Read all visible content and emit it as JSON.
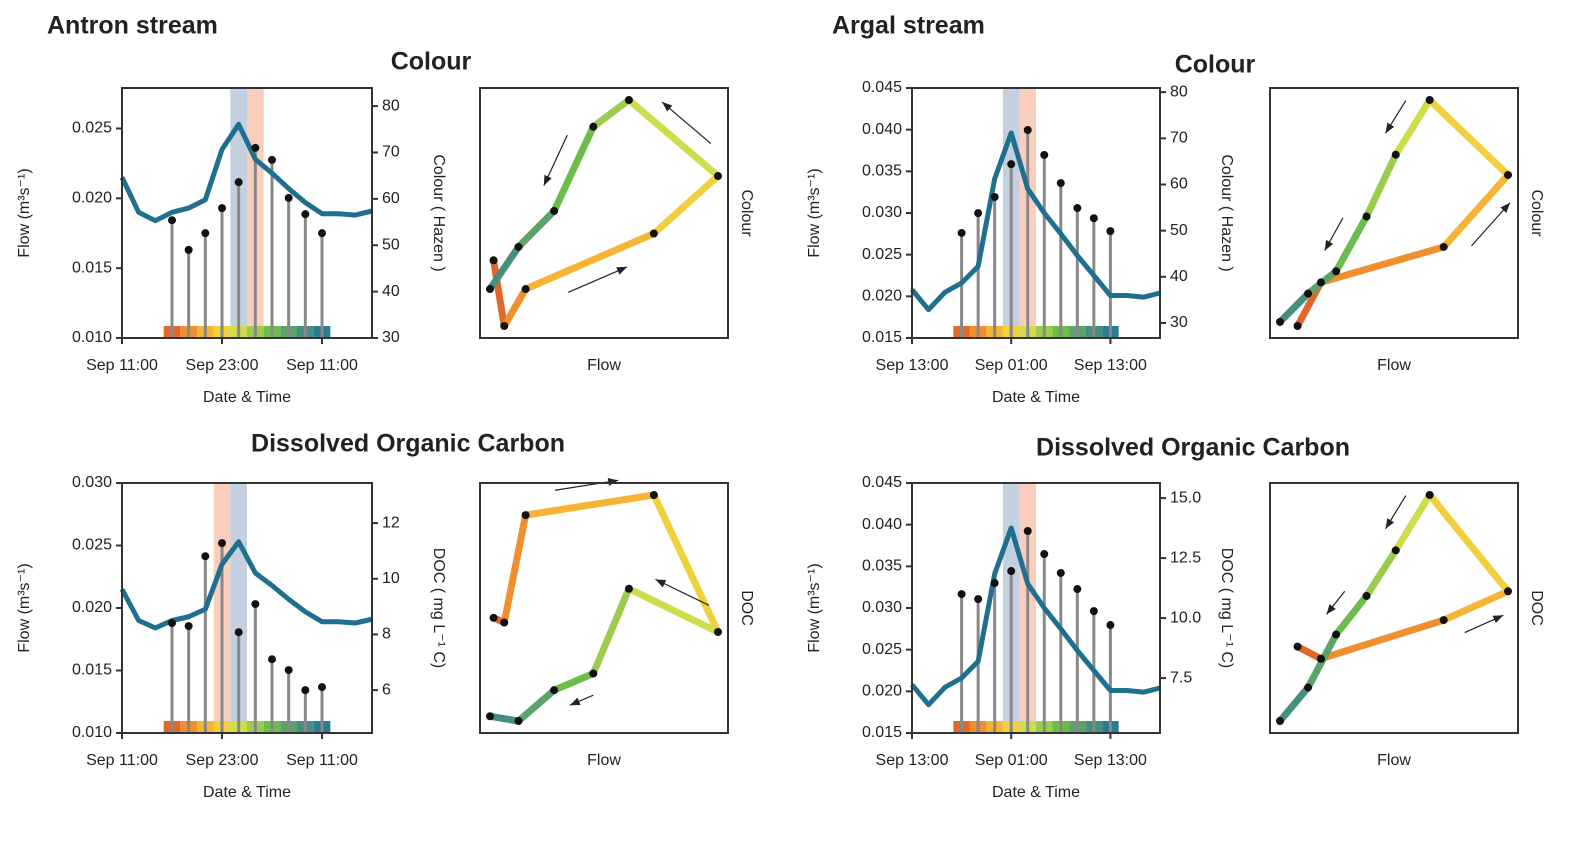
{
  "headers": [
    "Antron stream",
    "Argal stream"
  ],
  "chart_data": [
    {
      "type": "stem",
      "title": "Colour",
      "x_label": "Date & Time",
      "y_label": "Flow (m³s⁻¹)",
      "y2_label": "Colour ( Hazen )",
      "xlim": [
        0,
        30
      ],
      "xticks": [
        {
          "value": 0,
          "label": "Sep 11:00"
        },
        {
          "value": 12,
          "label": "Sep 23:00"
        },
        {
          "value": 24,
          "label": "Sep 11:00"
        }
      ],
      "ylim": [
        0.01,
        0.0279
      ],
      "yticks": [
        {
          "value": 0.01,
          "label": "0.010"
        },
        0.015,
        {
          "value": 0.02,
          "label": "0.020"
        },
        0.025
      ],
      "y2lim": [
        30,
        83.9
      ],
      "y2ticks": [
        30,
        40,
        50,
        60,
        70,
        80
      ],
      "flow_color": "#1f6f8f",
      "flow_x": [
        0,
        2,
        4,
        6,
        8,
        10,
        12,
        14,
        16,
        18,
        20,
        22,
        24,
        26,
        28,
        30
      ],
      "flow_values": [
        0.0215,
        0.019,
        0.0184,
        0.019,
        0.0193,
        0.0199,
        0.0235,
        0.0253,
        0.0228,
        0.0218,
        0.0207,
        0.0197,
        0.0189,
        0.0189,
        0.0188,
        0.0191
      ],
      "sample_x": [
        6,
        8,
        10,
        12,
        14,
        16,
        18,
        20,
        22,
        24
      ],
      "sample_values": [
        55.4,
        49.0,
        52.6,
        58.0,
        63.6,
        71.0,
        68.4,
        60.2,
        56.7,
        52.6
      ],
      "sample_colors": [
        "#e0692a",
        "#f08f2e",
        "#f5b434",
        "#f2cf3c",
        "#cfdc4c",
        "#9ccc4e",
        "#6cbc4c",
        "#5ba36a",
        "#468e80",
        "#2a7d90"
      ],
      "highlights": [
        {
          "x": [
            13,
            15
          ],
          "color": "#b9c8db"
        },
        {
          "x": [
            15,
            17
          ],
          "color": "#f8c6b2"
        }
      ],
      "hysteresis": {
        "x_label": "Flow",
        "y_label": "Colour"
      }
    },
    {
      "type": "stem",
      "title": "Dissolved Organic Carbon",
      "x_label": "Date & Time",
      "y_label": "Flow (m³s⁻¹)",
      "y2_label": "DOC ( mg L⁻¹ C)",
      "xlim": [
        0,
        30
      ],
      "xticks": [
        {
          "value": 0,
          "label": "Sep 11:00"
        },
        {
          "value": 12,
          "label": "Sep 23:00"
        },
        {
          "value": 24,
          "label": "Sep 11:00"
        }
      ],
      "ylim": [
        0.01,
        0.03
      ],
      "yticks": [
        {
          "value": 0.01,
          "label": "0.010"
        },
        0.015,
        {
          "value": 0.02,
          "label": "0.020"
        },
        0.025,
        {
          "value": 0.03,
          "label": "0.030"
        }
      ],
      "y2lim": [
        4.46,
        13.44
      ],
      "y2ticks": [
        6,
        8,
        10,
        12
      ],
      "flow_color": "#1f6f8f",
      "flow_x": [
        0,
        2,
        4,
        6,
        8,
        10,
        12,
        14,
        16,
        18,
        20,
        22,
        24,
        26,
        28,
        30
      ],
      "flow_values": [
        0.0215,
        0.019,
        0.0184,
        0.019,
        0.0193,
        0.0199,
        0.0235,
        0.0253,
        0.0228,
        0.0218,
        0.0207,
        0.0197,
        0.0189,
        0.0189,
        0.0188,
        0.0191
      ],
      "sample_x": [
        6,
        8,
        10,
        12,
        14,
        16,
        18,
        20,
        22,
        24
      ],
      "sample_values": [
        8.41,
        8.3,
        10.81,
        11.28,
        8.08,
        9.09,
        7.11,
        6.72,
        6.0,
        6.11
      ],
      "sample_colors": [
        "#e0692a",
        "#f08f2e",
        "#f5b434",
        "#f2cf3c",
        "#cfdc4c",
        "#9ccc4e",
        "#6cbc4c",
        "#5ba36a",
        "#468e80",
        "#2a7d90"
      ],
      "highlights": [
        {
          "x": [
            11,
            13
          ],
          "color": "#f8c6b2"
        },
        {
          "x": [
            13,
            15
          ],
          "color": "#b9c8db"
        }
      ],
      "hysteresis": {
        "x_label": "Flow",
        "y_label": "DOC"
      }
    },
    {
      "type": "stem",
      "title": "Colour",
      "x_label": "Date & Time",
      "y_label": "Flow (m³s⁻¹)",
      "y2_label": "Colour ( Hazen )",
      "xlim": [
        0,
        30
      ],
      "xticks": [
        {
          "value": 0,
          "label": "Sep 13:00"
        },
        {
          "value": 12,
          "label": "Sep 01:00"
        },
        {
          "value": 24,
          "label": "Sep 13:00"
        }
      ],
      "ylim": [
        0.015,
        0.045
      ],
      "yticks": [
        0.015,
        {
          "value": 0.02,
          "label": "0.020"
        },
        0.025,
        {
          "value": 0.03,
          "label": "0.030"
        },
        0.035,
        {
          "value": 0.04,
          "label": "0.040"
        },
        0.045
      ],
      "y2lim": [
        26.75,
        80.9
      ],
      "y2ticks": [
        30,
        40,
        50,
        60,
        70,
        80
      ],
      "flow_color": "#1f6f8f",
      "flow_x": [
        0,
        2,
        4,
        6,
        8,
        10,
        12,
        14,
        16,
        18,
        20,
        22,
        24,
        26,
        28,
        30
      ],
      "flow_values": [
        0.0208,
        0.0184,
        0.0205,
        0.0216,
        0.0236,
        0.0341,
        0.0396,
        0.0329,
        0.03,
        0.0275,
        0.0249,
        0.0225,
        0.0201,
        0.0201,
        0.0199,
        0.0204
      ],
      "sample_x": [
        6,
        8,
        10,
        12,
        14,
        16,
        18,
        20,
        22,
        24
      ],
      "sample_values": [
        49.5,
        53.8,
        57.3,
        64.4,
        71.8,
        66.4,
        60.3,
        54.9,
        52.7,
        49.9
      ],
      "sample_colors": [
        "#e0692a",
        "#f08f2e",
        "#f5b434",
        "#f2cf3c",
        "#cfdc4c",
        "#9ccc4e",
        "#6cbc4c",
        "#5ba36a",
        "#468e80",
        "#2a7d90"
      ],
      "highlights": [
        {
          "x": [
            11,
            13
          ],
          "color": "#b9c8db"
        },
        {
          "x": [
            13,
            15
          ],
          "color": "#f8c6b2"
        }
      ],
      "hysteresis": {
        "x_label": "Flow",
        "y_label": "Colour"
      }
    },
    {
      "type": "stem",
      "title": "Dissolved Organic Carbon",
      "x_label": "Date & Time",
      "y_label": "Flow (m³s⁻¹)",
      "y2_label": "DOC ( mg L⁻¹ C)",
      "xlim": [
        0,
        30
      ],
      "xticks": [
        {
          "value": 0,
          "label": "Sep 13:00"
        },
        {
          "value": 12,
          "label": "Sep 01:00"
        },
        {
          "value": 24,
          "label": "Sep 13:00"
        }
      ],
      "ylim": [
        0.015,
        0.045
      ],
      "yticks": [
        0.015,
        {
          "value": 0.02,
          "label": "0.020"
        },
        0.025,
        {
          "value": 0.03,
          "label": "0.030"
        },
        0.035,
        {
          "value": 0.04,
          "label": "0.040"
        },
        0.045
      ],
      "y2lim": [
        5.21,
        15.63
      ],
      "y2ticks": [
        7.5,
        {
          "value": 10,
          "label": "10.0"
        },
        12.5,
        {
          "value": 15,
          "label": "15.0"
        }
      ],
      "flow_color": "#1f6f8f",
      "flow_x": [
        0,
        2,
        4,
        6,
        8,
        10,
        12,
        14,
        16,
        18,
        20,
        22,
        24,
        26,
        28,
        30
      ],
      "flow_values": [
        0.0208,
        0.0184,
        0.0205,
        0.0216,
        0.0236,
        0.0341,
        0.0396,
        0.0329,
        0.03,
        0.0275,
        0.0249,
        0.0225,
        0.0201,
        0.0201,
        0.0199,
        0.0204
      ],
      "sample_x": [
        6,
        8,
        10,
        12,
        14,
        16,
        18,
        20,
        22,
        24
      ],
      "sample_values": [
        11.0,
        10.79,
        11.46,
        11.96,
        13.63,
        12.67,
        11.88,
        11.21,
        10.29,
        9.71
      ],
      "sample_colors": [
        "#e0692a",
        "#f08f2e",
        "#f5b434",
        "#f2cf3c",
        "#cfdc4c",
        "#9ccc4e",
        "#6cbc4c",
        "#5ba36a",
        "#468e80",
        "#2a7d90"
      ],
      "highlights": [
        {
          "x": [
            11,
            13
          ],
          "color": "#b9c8db"
        },
        {
          "x": [
            13,
            15
          ],
          "color": "#f8c6b2"
        }
      ],
      "hysteresis": {
        "x_label": "Flow",
        "y_label": "DOC"
      }
    }
  ]
}
